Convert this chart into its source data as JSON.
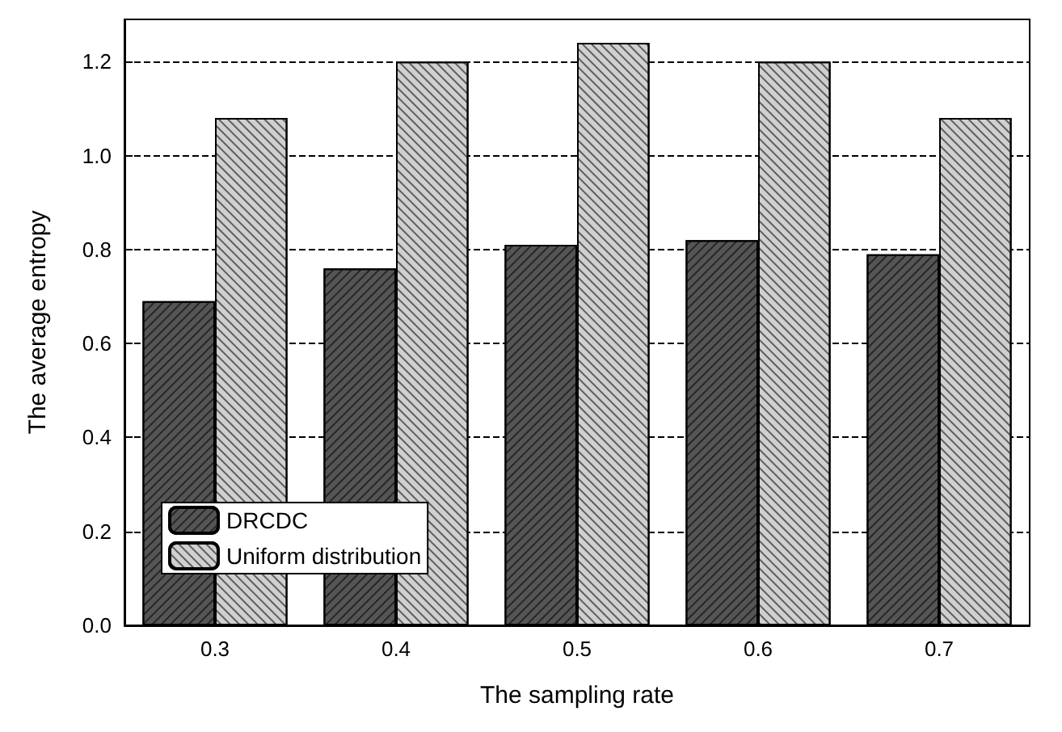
{
  "chart_data": {
    "type": "bar",
    "xlabel": "The sampling rate",
    "ylabel": "The average entropy",
    "categories": [
      "0.3",
      "0.4",
      "0.5",
      "0.6",
      "0.7"
    ],
    "series": [
      {
        "name": "DRCDC",
        "color": "#555555",
        "values": [
          0.69,
          0.76,
          0.81,
          0.82,
          0.79
        ]
      },
      {
        "name": "Uniform distribution",
        "color": "#d0d0d0",
        "values": [
          1.08,
          1.2,
          1.24,
          1.2,
          1.08
        ]
      }
    ],
    "ylim": [
      0,
      1.29
    ],
    "yticks": [
      {
        "value": 0,
        "label": "0.0"
      },
      {
        "value": 0.2,
        "label": "0.2"
      },
      {
        "value": 0.4,
        "label": "0.4"
      },
      {
        "value": 0.6,
        "label": "0.6"
      },
      {
        "value": 0.8,
        "label": "0.8"
      },
      {
        "value": 1,
        "label": "1.0"
      },
      {
        "value": 1.2,
        "label": "1.2"
      }
    ],
    "grid": "y",
    "legend": "bottom left"
  }
}
